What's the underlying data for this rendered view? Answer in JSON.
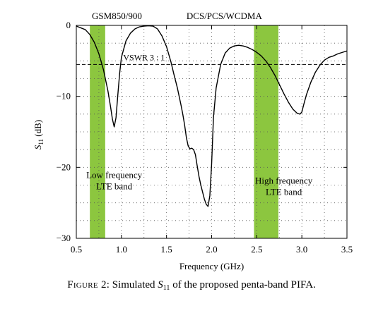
{
  "chart_data": {
    "type": "line",
    "ylabel": "S11 (dB)",
    "ylabel_main": "S",
    "ylabel_sub": "11",
    "ylabel_unit": " (dB)",
    "xlabel": "Frequency (GHz)",
    "xlim": [
      0.5,
      3.5
    ],
    "ylim": [
      -30,
      0
    ],
    "xticks": [
      0.5,
      1.0,
      1.5,
      2.0,
      2.5,
      3.0,
      3.5
    ],
    "xtick_labels": [
      "0.5",
      "1.0",
      "1.5",
      "2.0",
      "2.5",
      "3.0",
      "3.5"
    ],
    "yticks": [
      0,
      -10,
      -20,
      -30
    ],
    "ytick_labels": [
      "0",
      "−10",
      "−20",
      "−30"
    ],
    "grid": "dotted",
    "bands": [
      {
        "x_start": 0.65,
        "x_end": 0.82,
        "color": "#8cc63f"
      },
      {
        "x_start": 2.47,
        "x_end": 2.74,
        "color": "#8cc63f"
      }
    ],
    "top_labels": [
      {
        "text": "GSM850/900",
        "x": 0.95
      },
      {
        "text": "DCS/PCS/WCDMA",
        "x": 2.14
      }
    ],
    "vswr": {
      "y": -5.5,
      "label": "VSWR 3 : 1",
      "label_x": 1.02
    },
    "annotations": [
      {
        "lines": [
          "Low frequency",
          "LTE band"
        ],
        "x": 0.92,
        "y": -21.5
      },
      {
        "lines": [
          "High frequency",
          "LTE band"
        ],
        "x": 2.8,
        "y": -22.3
      }
    ],
    "series": [
      {
        "color": "#000000",
        "x": [
          0.5,
          0.6,
          0.65,
          0.7,
          0.75,
          0.8,
          0.85,
          0.88,
          0.9,
          0.92,
          0.94,
          0.96,
          0.98,
          1.0,
          1.05,
          1.1,
          1.15,
          1.2,
          1.25,
          1.3,
          1.35,
          1.4,
          1.45,
          1.5,
          1.55,
          1.58,
          1.62,
          1.66,
          1.68,
          1.7,
          1.72,
          1.74,
          1.76,
          1.78,
          1.8,
          1.82,
          1.84,
          1.86,
          1.88,
          1.9,
          1.92,
          1.94,
          1.96,
          1.98,
          2.0,
          2.02,
          2.05,
          2.1,
          2.15,
          2.2,
          2.25,
          2.3,
          2.35,
          2.4,
          2.45,
          2.5,
          2.55,
          2.6,
          2.65,
          2.7,
          2.75,
          2.8,
          2.85,
          2.9,
          2.95,
          2.98,
          3.0,
          3.02,
          3.05,
          3.1,
          3.15,
          3.2,
          3.25,
          3.3,
          3.35,
          3.4,
          3.45,
          3.5
        ],
        "y": [
          -0.1,
          -0.6,
          -1.3,
          -2.4,
          -4.0,
          -6.2,
          -9.2,
          -11.5,
          -13.2,
          -14.3,
          -13.0,
          -9.8,
          -6.8,
          -4.5,
          -2.2,
          -1.1,
          -0.5,
          -0.2,
          -0.1,
          -0.05,
          -0.1,
          -0.5,
          -1.5,
          -3.0,
          -5.2,
          -6.8,
          -8.8,
          -11.2,
          -12.5,
          -14.0,
          -15.8,
          -17.0,
          -17.4,
          -17.3,
          -17.5,
          -18.2,
          -19.8,
          -21.3,
          -22.5,
          -23.5,
          -24.5,
          -25.2,
          -25.5,
          -24.0,
          -19.5,
          -13.0,
          -8.8,
          -5.5,
          -3.9,
          -3.2,
          -2.9,
          -2.8,
          -2.9,
          -3.1,
          -3.4,
          -3.8,
          -4.3,
          -5.0,
          -5.9,
          -7.0,
          -8.3,
          -9.6,
          -10.8,
          -11.8,
          -12.4,
          -12.5,
          -12.2,
          -11.2,
          -9.8,
          -8.0,
          -6.6,
          -5.6,
          -4.9,
          -4.5,
          -4.3,
          -4.0,
          -3.8,
          -3.6
        ]
      }
    ]
  },
  "caption": {
    "prefix": "Figure 2",
    "colon": ": Simulated ",
    "sym": "S",
    "sub": "11",
    "rest": " of the proposed penta-band PIFA."
  }
}
